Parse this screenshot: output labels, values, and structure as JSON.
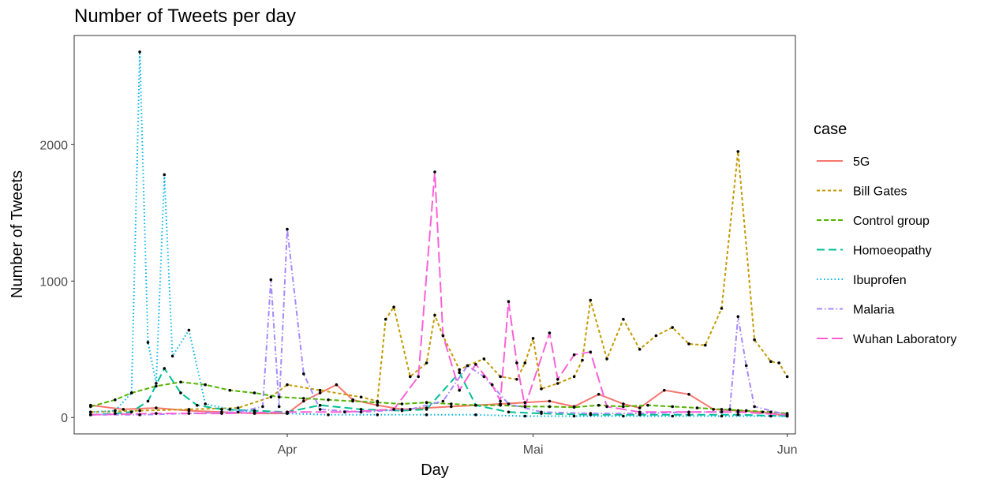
{
  "chart_data": {
    "type": "line",
    "title": "Number of Tweets per day",
    "xlabel": "Day",
    "ylabel": "Number of Tweets",
    "x_ticks": [
      {
        "date": "2020-04-01",
        "label": "Apr"
      },
      {
        "date": "2020-05-01",
        "label": "Mai"
      },
      {
        "date": "2020-06-01",
        "label": "Jun"
      }
    ],
    "y_ticks": [
      0,
      1000,
      2000
    ],
    "x_range": [
      "2020-03-06",
      "2020-06-02"
    ],
    "ylim": [
      -120,
      2800
    ],
    "grid": false,
    "legend": {
      "title": "case",
      "placement": "right"
    },
    "series": [
      {
        "name": "5G",
        "color": "#F8766D",
        "dash": "solid",
        "points": [
          [
            "2020-03-08",
            90
          ],
          [
            "2020-03-12",
            60
          ],
          [
            "2020-03-16",
            70
          ],
          [
            "2020-03-20",
            50
          ],
          [
            "2020-03-24",
            40
          ],
          [
            "2020-03-28",
            30
          ],
          [
            "2020-04-01",
            30
          ],
          [
            "2020-04-03",
            120
          ],
          [
            "2020-04-05",
            180
          ],
          [
            "2020-04-07",
            240
          ],
          [
            "2020-04-09",
            130
          ],
          [
            "2020-04-12",
            90
          ],
          [
            "2020-04-15",
            60
          ],
          [
            "2020-04-18",
            70
          ],
          [
            "2020-04-21",
            80
          ],
          [
            "2020-04-24",
            90
          ],
          [
            "2020-04-27",
            100
          ],
          [
            "2020-04-30",
            110
          ],
          [
            "2020-05-03",
            120
          ],
          [
            "2020-05-06",
            80
          ],
          [
            "2020-05-09",
            170
          ],
          [
            "2020-05-12",
            100
          ],
          [
            "2020-05-14",
            70
          ],
          [
            "2020-05-17",
            200
          ],
          [
            "2020-05-20",
            170
          ],
          [
            "2020-05-23",
            60
          ],
          [
            "2020-05-26",
            50
          ],
          [
            "2020-05-29",
            40
          ],
          [
            "2020-06-01",
            10
          ]
        ]
      },
      {
        "name": "Bill Gates",
        "color": "#C49A00",
        "dash": "4,3",
        "points": [
          [
            "2020-03-08",
            40
          ],
          [
            "2020-03-14",
            50
          ],
          [
            "2020-03-20",
            60
          ],
          [
            "2020-03-26",
            70
          ],
          [
            "2020-03-30",
            150
          ],
          [
            "2020-04-01",
            240
          ],
          [
            "2020-04-05",
            200
          ],
          [
            "2020-04-10",
            150
          ],
          [
            "2020-04-12",
            120
          ],
          [
            "2020-04-13",
            720
          ],
          [
            "2020-04-14",
            810
          ],
          [
            "2020-04-16",
            300
          ],
          [
            "2020-04-18",
            400
          ],
          [
            "2020-04-19",
            750
          ],
          [
            "2020-04-20",
            600
          ],
          [
            "2020-04-22",
            350
          ],
          [
            "2020-04-23",
            380
          ],
          [
            "2020-04-25",
            430
          ],
          [
            "2020-04-27",
            300
          ],
          [
            "2020-04-29",
            280
          ],
          [
            "2020-04-30",
            400
          ],
          [
            "2020-05-01",
            580
          ],
          [
            "2020-05-02",
            210
          ],
          [
            "2020-05-04",
            250
          ],
          [
            "2020-05-06",
            300
          ],
          [
            "2020-05-07",
            420
          ],
          [
            "2020-05-08",
            860
          ],
          [
            "2020-05-10",
            430
          ],
          [
            "2020-05-12",
            720
          ],
          [
            "2020-05-14",
            500
          ],
          [
            "2020-05-16",
            600
          ],
          [
            "2020-05-18",
            660
          ],
          [
            "2020-05-20",
            540
          ],
          [
            "2020-05-22",
            530
          ],
          [
            "2020-05-24",
            800
          ],
          [
            "2020-05-26",
            1950
          ],
          [
            "2020-05-28",
            570
          ],
          [
            "2020-05-30",
            410
          ],
          [
            "2020-05-31",
            400
          ],
          [
            "2020-06-01",
            300
          ]
        ]
      },
      {
        "name": "Control group",
        "color": "#53B400",
        "dash": "6,3",
        "points": [
          [
            "2020-03-08",
            80
          ],
          [
            "2020-03-11",
            130
          ],
          [
            "2020-03-13",
            180
          ],
          [
            "2020-03-16",
            230
          ],
          [
            "2020-03-19",
            260
          ],
          [
            "2020-03-22",
            240
          ],
          [
            "2020-03-25",
            200
          ],
          [
            "2020-03-28",
            180
          ],
          [
            "2020-03-31",
            150
          ],
          [
            "2020-04-03",
            140
          ],
          [
            "2020-04-06",
            130
          ],
          [
            "2020-04-09",
            120
          ],
          [
            "2020-04-12",
            110
          ],
          [
            "2020-04-15",
            100
          ],
          [
            "2020-04-18",
            110
          ],
          [
            "2020-04-21",
            100
          ],
          [
            "2020-04-24",
            90
          ],
          [
            "2020-04-27",
            90
          ],
          [
            "2020-04-30",
            80
          ],
          [
            "2020-05-03",
            80
          ],
          [
            "2020-05-06",
            75
          ],
          [
            "2020-05-09",
            90
          ],
          [
            "2020-05-12",
            80
          ],
          [
            "2020-05-15",
            90
          ],
          [
            "2020-05-18",
            80
          ],
          [
            "2020-05-21",
            70
          ],
          [
            "2020-05-24",
            60
          ],
          [
            "2020-05-27",
            50
          ],
          [
            "2020-05-30",
            40
          ],
          [
            "2020-06-01",
            30
          ]
        ]
      },
      {
        "name": "Homoeopathy",
        "color": "#00C094",
        "dash": "10,5",
        "points": [
          [
            "2020-03-08",
            20
          ],
          [
            "2020-03-11",
            30
          ],
          [
            "2020-03-13",
            40
          ],
          [
            "2020-03-15",
            120
          ],
          [
            "2020-03-17",
            360
          ],
          [
            "2020-03-19",
            180
          ],
          [
            "2020-03-21",
            90
          ],
          [
            "2020-03-24",
            60
          ],
          [
            "2020-03-28",
            50
          ],
          [
            "2020-04-01",
            40
          ],
          [
            "2020-04-05",
            90
          ],
          [
            "2020-04-10",
            60
          ],
          [
            "2020-04-15",
            50
          ],
          [
            "2020-04-18",
            60
          ],
          [
            "2020-04-22",
            330
          ],
          [
            "2020-04-24",
            90
          ],
          [
            "2020-04-28",
            40
          ],
          [
            "2020-05-02",
            30
          ],
          [
            "2020-05-08",
            20
          ],
          [
            "2020-05-14",
            20
          ],
          [
            "2020-05-20",
            20
          ],
          [
            "2020-05-26",
            20
          ],
          [
            "2020-06-01",
            10
          ]
        ]
      },
      {
        "name": "Ibuprofen",
        "color": "#00B6EB",
        "dash": "1.5,3",
        "points": [
          [
            "2020-03-08",
            40
          ],
          [
            "2020-03-11",
            50
          ],
          [
            "2020-03-13",
            180
          ],
          [
            "2020-03-14",
            2680
          ],
          [
            "2020-03-15",
            550
          ],
          [
            "2020-03-16",
            250
          ],
          [
            "2020-03-17",
            1780
          ],
          [
            "2020-03-18",
            450
          ],
          [
            "2020-03-20",
            640
          ],
          [
            "2020-03-22",
            100
          ],
          [
            "2020-03-25",
            60
          ],
          [
            "2020-03-28",
            40
          ],
          [
            "2020-04-01",
            30
          ],
          [
            "2020-04-06",
            20
          ],
          [
            "2020-04-12",
            20
          ],
          [
            "2020-04-18",
            20
          ],
          [
            "2020-04-24",
            20
          ],
          [
            "2020-04-30",
            10
          ],
          [
            "2020-05-06",
            10
          ],
          [
            "2020-05-12",
            10
          ],
          [
            "2020-05-18",
            10
          ],
          [
            "2020-05-24",
            10
          ],
          [
            "2020-05-30",
            10
          ],
          [
            "2020-06-01",
            10
          ]
        ]
      },
      {
        "name": "Malaria",
        "color": "#A58AFF",
        "dash": "7,3,1.5,3",
        "points": [
          [
            "2020-03-08",
            20
          ],
          [
            "2020-03-14",
            20
          ],
          [
            "2020-03-20",
            30
          ],
          [
            "2020-03-26",
            40
          ],
          [
            "2020-03-29",
            80
          ],
          [
            "2020-03-30",
            1010
          ],
          [
            "2020-03-31",
            80
          ],
          [
            "2020-04-01",
            1380
          ],
          [
            "2020-04-03",
            320
          ],
          [
            "2020-04-05",
            60
          ],
          [
            "2020-04-10",
            40
          ],
          [
            "2020-04-16",
            60
          ],
          [
            "2020-04-20",
            120
          ],
          [
            "2020-04-23",
            380
          ],
          [
            "2020-04-25",
            300
          ],
          [
            "2020-04-28",
            100
          ],
          [
            "2020-05-02",
            40
          ],
          [
            "2020-05-08",
            30
          ],
          [
            "2020-05-14",
            30
          ],
          [
            "2020-05-20",
            40
          ],
          [
            "2020-05-24",
            40
          ],
          [
            "2020-05-25",
            60
          ],
          [
            "2020-05-26",
            740
          ],
          [
            "2020-05-27",
            380
          ],
          [
            "2020-05-28",
            80
          ],
          [
            "2020-06-01",
            20
          ]
        ]
      },
      {
        "name": "Wuhan Laboratory",
        "color": "#FB61D7",
        "dash": "14,5",
        "points": [
          [
            "2020-03-08",
            20
          ],
          [
            "2020-03-16",
            30
          ],
          [
            "2020-03-24",
            30
          ],
          [
            "2020-04-01",
            40
          ],
          [
            "2020-04-08",
            40
          ],
          [
            "2020-04-14",
            60
          ],
          [
            "2020-04-17",
            300
          ],
          [
            "2020-04-19",
            1800
          ],
          [
            "2020-04-20",
            600
          ],
          [
            "2020-04-22",
            200
          ],
          [
            "2020-04-24",
            390
          ],
          [
            "2020-04-26",
            240
          ],
          [
            "2020-04-27",
            120
          ],
          [
            "2020-04-28",
            850
          ],
          [
            "2020-04-29",
            400
          ],
          [
            "2020-04-30",
            80
          ],
          [
            "2020-05-03",
            620
          ],
          [
            "2020-05-04",
            280
          ],
          [
            "2020-05-06",
            460
          ],
          [
            "2020-05-08",
            480
          ],
          [
            "2020-05-10",
            80
          ],
          [
            "2020-05-14",
            40
          ],
          [
            "2020-05-20",
            40
          ],
          [
            "2020-05-26",
            40
          ],
          [
            "2020-06-01",
            20
          ]
        ]
      }
    ]
  }
}
